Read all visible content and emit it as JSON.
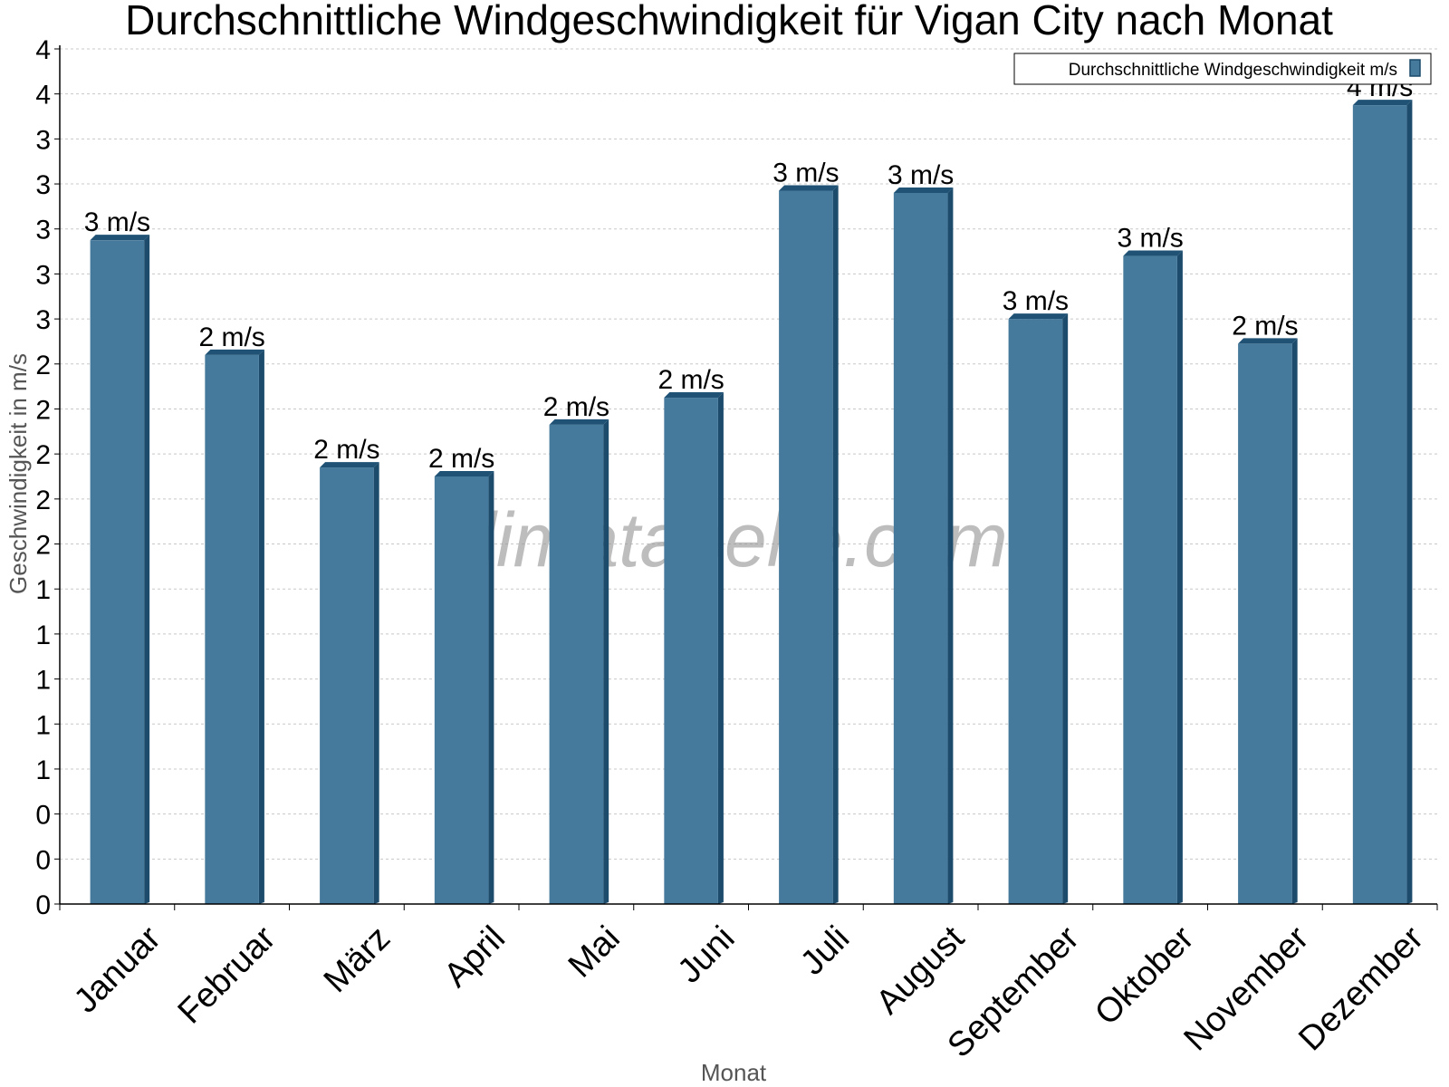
{
  "chart_data": {
    "type": "bar",
    "title": "Durchschnittliche Windgeschwindigkeit für Vigan City nach Monat",
    "xlabel": "Monat",
    "ylabel": "Geschwindigkeit in m/s",
    "categories": [
      "Januar",
      "Februar",
      "März",
      "April",
      "Mai",
      "Juni",
      "Juli",
      "August",
      "September",
      "Oktober",
      "November",
      "Dezember"
    ],
    "series": [
      {
        "name": "Durchschnittliche Windgeschwindigkeit m/s",
        "values": [
          2.95,
          2.44,
          1.94,
          1.9,
          2.13,
          2.25,
          3.17,
          3.16,
          2.6,
          2.88,
          2.49,
          3.55
        ],
        "labels": [
          "3 m/s",
          "2 m/s",
          "2 m/s",
          "2 m/s",
          "2 m/s",
          "2 m/s",
          "3 m/s",
          "3 m/s",
          "3 m/s",
          "3 m/s",
          "2 m/s",
          "4 m/s"
        ],
        "color": "#467a9c"
      }
    ],
    "ylim": [
      0,
      3.8
    ],
    "yticks": [
      0,
      0.2,
      0.4,
      0.6,
      0.8,
      1.0,
      1.2,
      1.4,
      1.6,
      1.8,
      2.0,
      2.2,
      2.4,
      2.6,
      2.8,
      3.0,
      3.2,
      3.4,
      3.6,
      3.8
    ],
    "ytick_labels": [
      "0",
      "0",
      "0",
      "1",
      "1",
      "1",
      "1",
      "1",
      "2",
      "2",
      "2",
      "2",
      "2",
      "3",
      "3",
      "3",
      "3",
      "3",
      "4",
      "4"
    ],
    "grid": true,
    "legend_position": "top-right",
    "watermark": "klimatabelle.com"
  }
}
